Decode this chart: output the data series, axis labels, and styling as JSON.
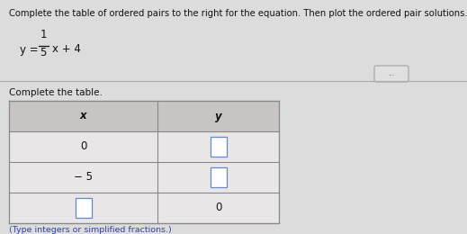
{
  "title_text": "Complete the table of ordered pairs to the right for the equation. Then plot the ordered pair solutions.",
  "section_label": "Complete the table.",
  "footer_text": "(Type integers or simplified fractions.)",
  "bg_color": "#dcdcdc",
  "table_bg_light": "#e8e6e6",
  "table_bg_header": "#c8c4c4",
  "input_box_color": "#b8c8e8",
  "text_color": "#111111",
  "footer_color": "#3344aa",
  "font_size_title": 7.2,
  "font_size_eq": 8.5,
  "font_size_table": 8.5,
  "font_size_footer": 6.8,
  "eq_numerator": "1",
  "eq_denominator": "5",
  "eq_rest": "x + 4",
  "eq_prefix": "y =",
  "dots_text": "..."
}
